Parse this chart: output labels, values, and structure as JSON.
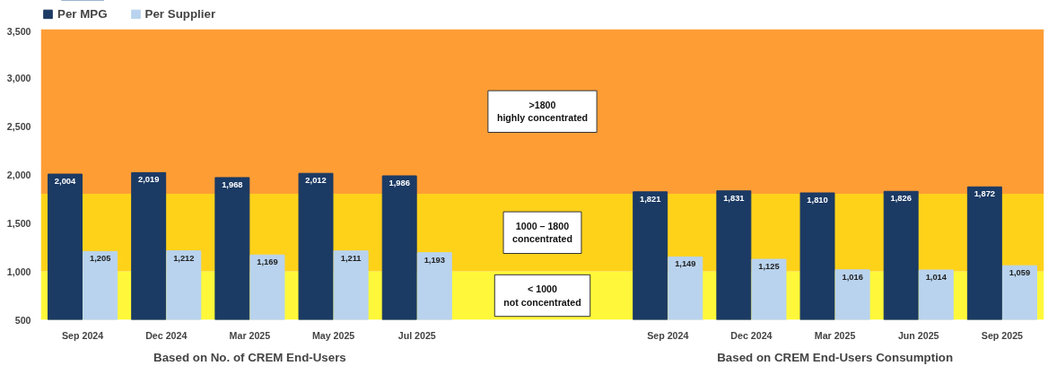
{
  "chart_data": {
    "type": "bar",
    "categories": [
      "Sep 2024",
      "Dec 2024",
      "Mar 2025",
      "May 2025",
      "Jul 2025",
      null,
      null,
      "Sep 2024",
      "Dec 2024",
      "Mar 2025",
      "Jun 2025",
      "Sep 2025"
    ],
    "series": [
      {
        "name": "Per MPG",
        "color": "#1b3a64",
        "values": [
          2004,
          2019,
          1968,
          2012,
          1986,
          null,
          null,
          1821,
          1831,
          1810,
          1826,
          1872
        ],
        "value_labels": [
          "2,004",
          "2,019",
          "1,968",
          "2,012",
          "1,986",
          null,
          null,
          "1,821",
          "1,831",
          "1,810",
          "1,826",
          "1,872"
        ]
      },
      {
        "name": "Per Supplier",
        "color": "#b9d3ee",
        "values": [
          1205,
          1212,
          1169,
          1211,
          1193,
          null,
          null,
          1149,
          1125,
          1016,
          1014,
          1059
        ],
        "value_labels": [
          "1,205",
          "1,212",
          "1,169",
          "1,211",
          "1,193",
          null,
          null,
          "1,149",
          "1,125",
          "1,016",
          "1,014",
          "1,059"
        ]
      }
    ],
    "ylim": [
      500,
      3500
    ],
    "yticks": [
      500,
      {
        "value": 1000,
        "label": "1,000"
      },
      {
        "value": 1500,
        "label": "1,500"
      },
      {
        "value": 2000,
        "label": "2,000"
      },
      {
        "value": 2500,
        "label": "2,500"
      },
      {
        "value": 3000,
        "label": "3,000"
      },
      {
        "value": 3500,
        "label": "3,500"
      }
    ],
    "bands": [
      {
        "axis": "y",
        "from": 500,
        "to": 1000,
        "label": "< 1000\nnot concentrated",
        "color": "#fff83a"
      },
      {
        "axis": "y",
        "from": 1000,
        "to": 1800,
        "label": "1000 – 1800\nconcentrated",
        "color": "#ffd21a"
      },
      {
        "axis": "y",
        "from": 1800,
        "to": 3500,
        "label": ">1800\nhighly concentrated",
        "color": "#ff9d35"
      }
    ],
    "annotations": [
      "Based on No. of CREM End-Users",
      "Based on CREM End-Users Consumption"
    ],
    "grid": false,
    "legend": "top left"
  }
}
